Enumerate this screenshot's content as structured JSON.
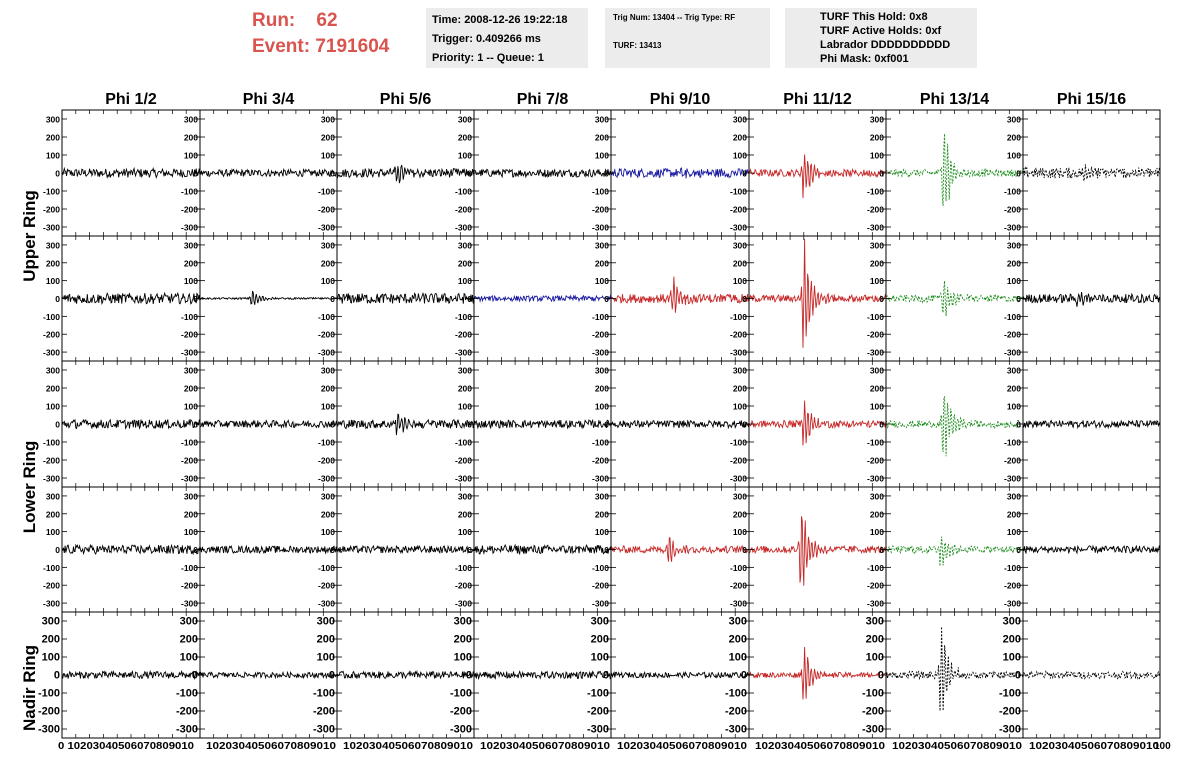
{
  "header": {
    "run_label": "Run:",
    "run_value": "62",
    "event_label": "Event:",
    "event_value": "7191604",
    "time_line": "Time: 2008-12-26 19:22:18",
    "trigger_line": "Trigger: 0.409266 ms",
    "priority_line": "Priority: 1 -- Queue: 1",
    "trig_line": "Trig Num: 13404 -- Trig Type: RF",
    "turf_line": "TURF: 13413",
    "turf_hold_line": "TURF This Hold: 0x8",
    "turf_active_line": "TURF Active Holds: 0xf",
    "labrador_line": "Labrador DDDDDDDDDD",
    "phi_mask_line": "Phi Mask: 0xf001"
  },
  "colors": {
    "header_red": "#d9534f",
    "trace_black": "#000000",
    "trace_blue": "#1a1aa0",
    "trace_red": "#c62828",
    "trace_green": "#1e8c1e"
  },
  "chart_data": {
    "type": "line",
    "columns": [
      "Phi 1/2",
      "Phi 3/4",
      "Phi 5/6",
      "Phi 7/8",
      "Phi 9/10",
      "Phi 11/12",
      "Phi 13/14",
      "Phi 15/16"
    ],
    "rows": [
      "Upper Ring",
      "Upper Ring",
      "Lower Ring",
      "Lower Ring",
      "Nadir Ring"
    ],
    "row_labels": [
      "Upper Ring",
      "Lower Ring",
      "Nadir Ring"
    ],
    "ylim": [
      -350,
      350
    ],
    "yticks": [
      -300,
      -200,
      -100,
      0,
      100,
      200,
      300
    ],
    "xlim": [
      0,
      100
    ],
    "xticks": [
      0,
      10,
      20,
      30,
      40,
      50,
      60,
      70,
      80,
      90,
      100
    ],
    "bottom_axis_text": [
      "0 10203040506070809010",
      "10203040506070809010",
      "10203040506070809010",
      "10203040506070809010",
      "10203040506070809010",
      "10203040506070809010",
      "10203040506070809010",
      "10203040506070809010"
    ],
    "last_tick": "100",
    "panel_color": [
      [
        "black",
        "black",
        "black",
        "black",
        "blue",
        "red",
        "green",
        "black"
      ],
      [
        "black",
        "black",
        "black",
        "blue",
        "red",
        "red",
        "green",
        "black"
      ],
      [
        "black",
        "black",
        "black",
        "black",
        "black",
        "red",
        "green",
        "black"
      ],
      [
        "black",
        "black",
        "black",
        "black",
        "red",
        "red",
        "green",
        "black"
      ],
      [
        "black",
        "black",
        "black",
        "black",
        "black",
        "red",
        "black",
        "black"
      ]
    ],
    "panel_dashed": [
      [
        false,
        false,
        false,
        false,
        false,
        false,
        true,
        true
      ],
      [
        false,
        false,
        false,
        false,
        false,
        false,
        true,
        false
      ],
      [
        false,
        false,
        false,
        false,
        false,
        false,
        true,
        false
      ],
      [
        false,
        false,
        false,
        false,
        false,
        false,
        true,
        false
      ],
      [
        false,
        false,
        false,
        false,
        false,
        false,
        true,
        true
      ]
    ],
    "baseline_noise": [
      [
        25,
        20,
        25,
        22,
        25,
        20,
        20,
        30
      ],
      [
        30,
        5,
        30,
        15,
        25,
        20,
        20,
        25
      ],
      [
        25,
        20,
        25,
        22,
        20,
        20,
        20,
        20
      ],
      [
        25,
        20,
        20,
        25,
        20,
        20,
        20,
        20
      ],
      [
        20,
        15,
        20,
        20,
        15,
        15,
        20,
        20
      ]
    ],
    "pulse_peak": [
      [
        0,
        0,
        70,
        0,
        25,
        180,
        330,
        70
      ],
      [
        0,
        60,
        0,
        0,
        130,
        400,
        140,
        50
      ],
      [
        0,
        0,
        80,
        0,
        0,
        170,
        270,
        0
      ],
      [
        0,
        0,
        0,
        0,
        110,
        330,
        120,
        0
      ],
      [
        0,
        0,
        0,
        0,
        0,
        200,
        350,
        0
      ]
    ],
    "pulse_center_x": [
      [
        0,
        0,
        44,
        0,
        50,
        40,
        42,
        45
      ],
      [
        0,
        38,
        0,
        0,
        45,
        40,
        42,
        40
      ],
      [
        0,
        0,
        44,
        0,
        0,
        40,
        42,
        0
      ],
      [
        0,
        0,
        0,
        0,
        42,
        38,
        40,
        0
      ],
      [
        0,
        0,
        0,
        0,
        0,
        40,
        40,
        0
      ]
    ]
  }
}
